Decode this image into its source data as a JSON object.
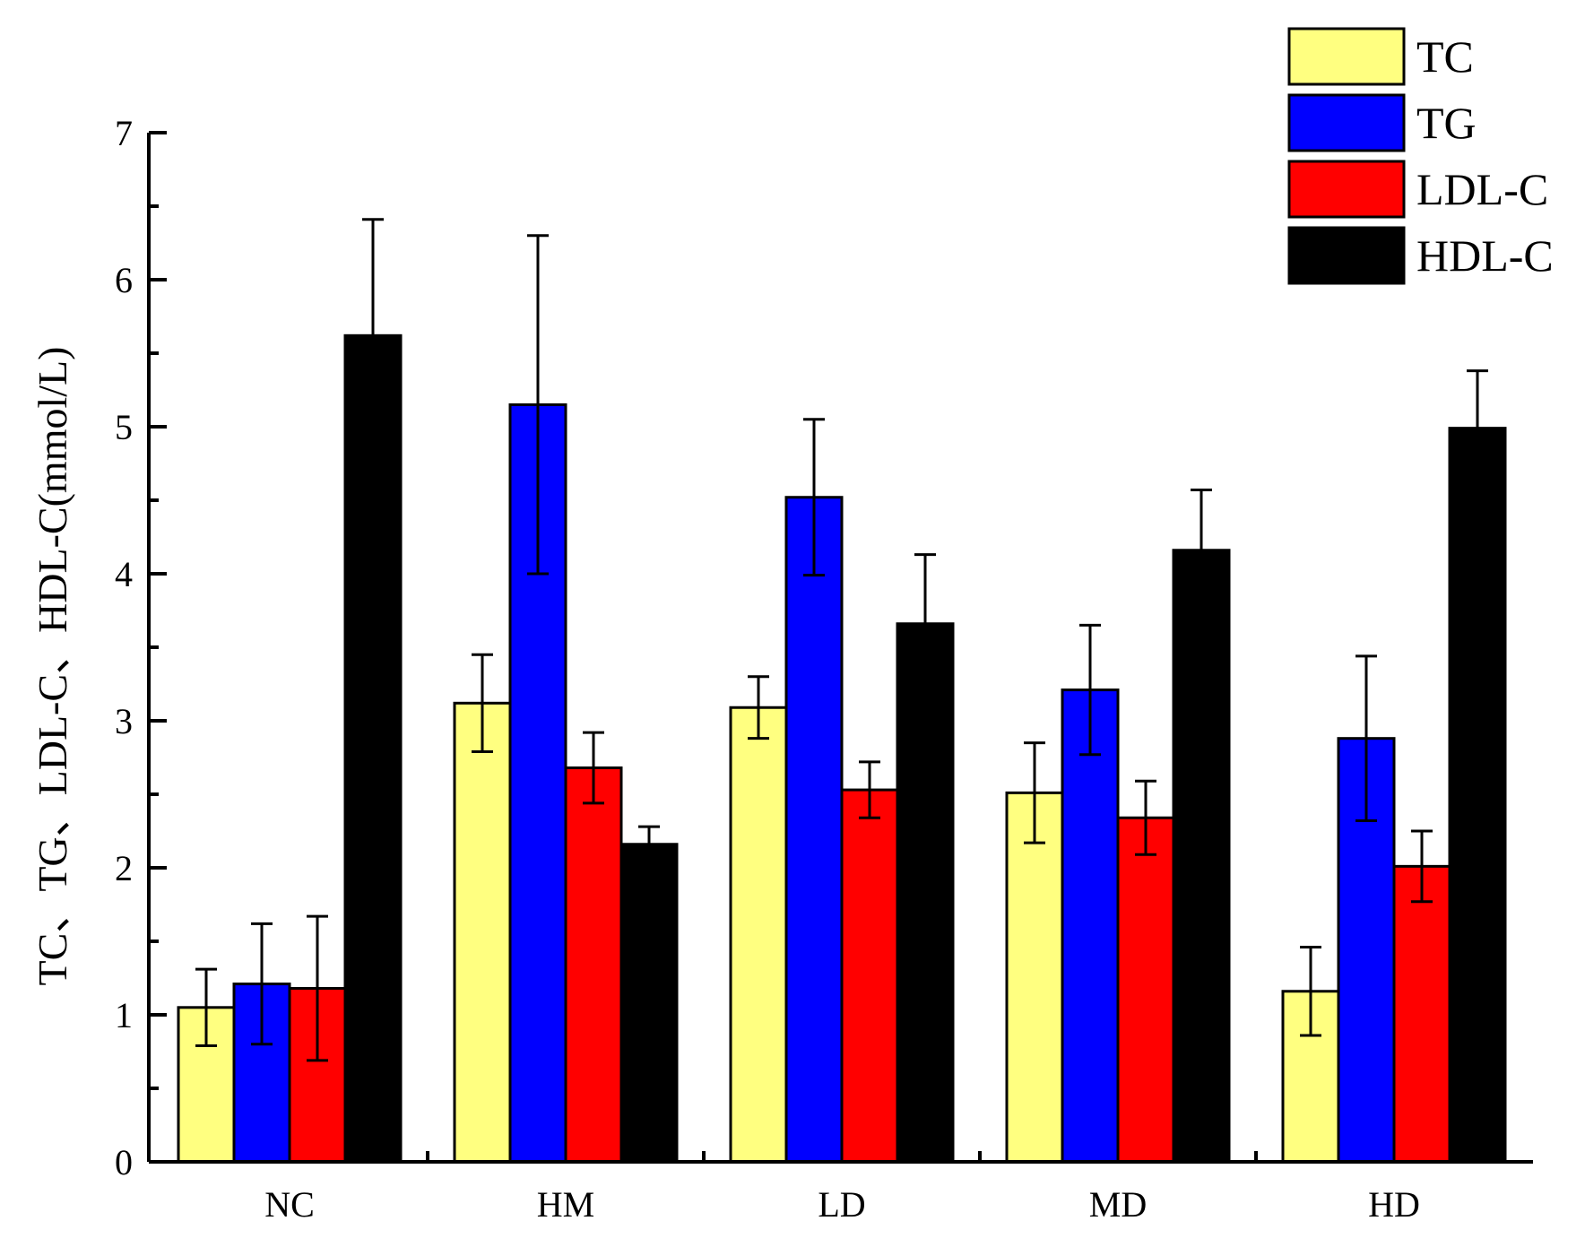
{
  "chart_data": {
    "type": "bar",
    "title": "",
    "xlabel": "",
    "ylabel": "TC、TG、LDL-C、HDL-C(mmol/L)",
    "ylim": [
      0,
      7
    ],
    "yticks": [
      "0",
      "1",
      "2",
      "3",
      "4",
      "5",
      "6",
      "7"
    ],
    "categories": [
      "NC",
      "HM",
      "LD",
      "MD",
      "HD"
    ],
    "legend_position": "top-right",
    "series": [
      {
        "name": "TC",
        "color": "#ffff80",
        "values": [
          1.05,
          3.12,
          3.09,
          2.51,
          1.16
        ],
        "errors": [
          0.26,
          0.33,
          0.21,
          0.34,
          0.3
        ]
      },
      {
        "name": "TG",
        "color": "#0000ff",
        "values": [
          1.21,
          5.15,
          4.52,
          3.21,
          2.88
        ],
        "errors": [
          0.41,
          1.15,
          0.53,
          0.44,
          0.56
        ]
      },
      {
        "name": "LDL-C",
        "color": "#ff0000",
        "values": [
          1.18,
          2.68,
          2.53,
          2.34,
          2.01
        ],
        "errors": [
          0.49,
          0.24,
          0.19,
          0.25,
          0.24
        ]
      },
      {
        "name": "HDL-C",
        "color": "#000000",
        "values": [
          5.62,
          2.16,
          3.66,
          4.16,
          4.99
        ],
        "errors": [
          0.79,
          0.12,
          0.47,
          0.41,
          0.39
        ]
      }
    ]
  }
}
